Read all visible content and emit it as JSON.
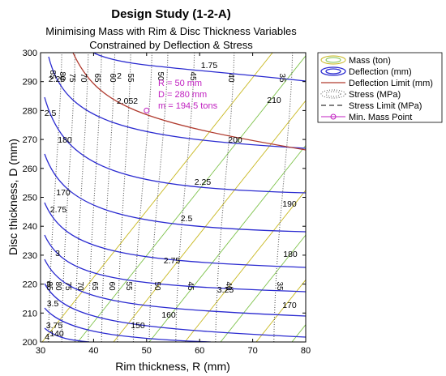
{
  "chart_data": {
    "type": "contour",
    "title": "Design Study (1-2-A)",
    "subtitle_line1": "Minimising Mass with Rim & Disc Thickness Variables",
    "subtitle_line2": "Constrained by Deflection & Stress",
    "xlabel": "Rim thickness, R (mm)",
    "ylabel": "Disc thickness, D (mm)",
    "xlim": [
      30,
      80
    ],
    "ylim": [
      200,
      300
    ],
    "xticks": [
      "30",
      "40",
      "50",
      "60",
      "70",
      "80"
    ],
    "yticks": [
      "200",
      "210",
      "220",
      "230",
      "240",
      "250",
      "260",
      "270",
      "280",
      "290",
      "300"
    ],
    "grid": false,
    "legend_position": "outside-right",
    "legend": [
      {
        "key": "mass",
        "label": "Mass (ton)"
      },
      {
        "key": "deflection",
        "label": "Deflection (mm)"
      },
      {
        "key": "deflection_limit",
        "label": "Deflection Limit (mm)"
      },
      {
        "key": "stress",
        "label": "Stress (MPa)"
      },
      {
        "key": "stress_limit",
        "label": "Stress Limit (MPa)"
      },
      {
        "key": "min_mass_point",
        "label": "Min. Mass Point"
      }
    ],
    "colors": {
      "deflection": "#2a2ad0",
      "deflection_limit": "#b03a2e",
      "mass_a": "#c8b820",
      "mass_b": "#7dc24a",
      "stress": "#555555",
      "min_mass": "#c020c0",
      "annotation": "#c020c0"
    },
    "mass_line_count": 10,
    "deflection_labels": [
      "1.75",
      "2",
      "2.052",
      "2.25",
      "2.5",
      "2.75",
      "3",
      "3.25",
      "3.5",
      "3.75",
      "4",
      "2.25",
      "2.5",
      "2.75",
      "3"
    ],
    "mass_labels": [
      "210",
      "200",
      "190",
      "180",
      "170",
      "160",
      "150",
      "140",
      "180",
      "170"
    ],
    "stress_top_labels": [
      "85",
      "80",
      "75",
      "70",
      "65",
      "60",
      "55",
      "50",
      "45",
      "40",
      "35"
    ],
    "stress_bottom_labels": [
      "85",
      "80",
      "75",
      "70",
      "65",
      "60",
      "55",
      "50",
      "45",
      "40",
      "35"
    ],
    "min_mass_point": {
      "x": 50,
      "y": 280
    },
    "annotation": [
      "R = 50 mm",
      "D = 280 mm",
      "m = 194.5 tons"
    ]
  }
}
